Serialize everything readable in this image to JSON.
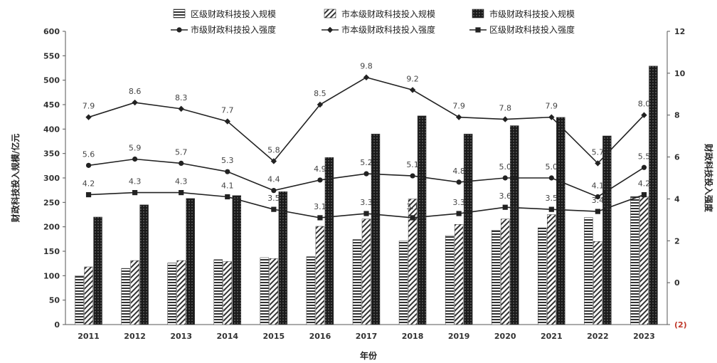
{
  "chart_data": {
    "type": "bar",
    "categories": [
      "2011",
      "2012",
      "2013",
      "2014",
      "2015",
      "2016",
      "2017",
      "2018",
      "2019",
      "2020",
      "2021",
      "2022",
      "2023"
    ],
    "xlabel": "年份",
    "ylabel": "财政科技投入规模/亿元",
    "y2label": "财政科技投入强度",
    "ylim": [
      0,
      600
    ],
    "y_ticks": [
      "0",
      "50",
      "100",
      "150",
      "200",
      "250",
      "300",
      "350",
      "400",
      "450",
      "500",
      "550",
      "600"
    ],
    "y2lim": [
      -2,
      12
    ],
    "y2_ticks": [
      "(2)",
      "0",
      "2",
      "4",
      "6",
      "8",
      "10",
      "12"
    ],
    "legend_position": "top",
    "bar_series": [
      {
        "name": "区级财政科技投入规模",
        "pattern": "horizontal-stripes",
        "values": [
          100,
          115,
          126,
          133,
          137,
          139,
          174,
          171,
          182,
          193,
          198,
          219,
          262
        ]
      },
      {
        "name": "市本级财政科技投入规模",
        "pattern": "diagonal-hatch",
        "values": [
          118,
          131,
          131,
          129,
          135,
          201,
          216,
          257,
          205,
          216,
          225,
          170,
          262
        ]
      },
      {
        "name": "市级财政科技投入规模",
        "pattern": "dark-dotted",
        "values": [
          220,
          245,
          258,
          264,
          272,
          342,
          390,
          427,
          390,
          407,
          424,
          386,
          529
        ]
      }
    ],
    "line_series": [
      {
        "name": "市级财政科技投入强度",
        "marker": "circle",
        "values": [
          5.6,
          5.9,
          5.7,
          5.3,
          4.4,
          4.9,
          5.2,
          5.1,
          4.8,
          5.0,
          5.0,
          4.1,
          5.5
        ],
        "labels": [
          "5.6",
          "5.9",
          "5.7",
          "5.3",
          "4.4",
          "4.9",
          "5.2",
          "5.1",
          "4.8",
          "5.0",
          "5.0",
          "4.1",
          "5.5"
        ]
      },
      {
        "name": "市本级财政科技投入强度",
        "marker": "diamond",
        "values": [
          7.9,
          8.6,
          8.3,
          7.7,
          5.8,
          8.5,
          9.8,
          9.2,
          7.9,
          7.8,
          7.9,
          5.7,
          8.0
        ],
        "labels": [
          "7.9",
          "8.6",
          "8.3",
          "7.7",
          "5.8",
          "8.5",
          "9.8",
          "9.2",
          "7.9",
          "7.8",
          "7.9",
          "5.7",
          "8.0"
        ]
      },
      {
        "name": "区级财政科技投入强度",
        "marker": "square",
        "values": [
          4.2,
          4.3,
          4.3,
          4.1,
          3.5,
          3.1,
          3.3,
          3.1,
          3.3,
          3.6,
          3.5,
          3.4,
          4.2
        ],
        "labels": [
          "4.2",
          "4.3",
          "4.3",
          "4.1",
          "3.5",
          "3.1",
          "3.3",
          "3.1",
          "3.3",
          "3.6",
          "3.5",
          "3.4",
          "4.2"
        ]
      }
    ],
    "colors": {
      "line": "#222222",
      "bar_dark": "#1a1a1a",
      "negative_tick": "#c0392b"
    }
  }
}
